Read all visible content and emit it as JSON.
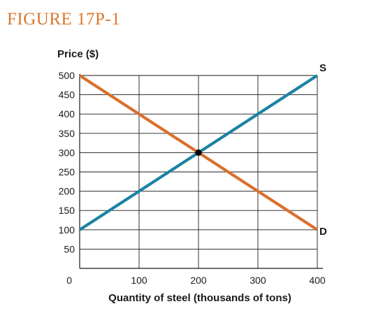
{
  "figure_label": "FIGURE 17P-1",
  "chart_data": {
    "type": "line",
    "title": "",
    "xlabel": "Quantity of steel (thousands of tons)",
    "ylabel": "Price ($)",
    "xlim": [
      0,
      400
    ],
    "ylim": [
      0,
      500
    ],
    "x_ticks": [
      100,
      200,
      300,
      400
    ],
    "y_ticks": [
      50,
      100,
      150,
      200,
      250,
      300,
      350,
      400,
      450,
      500
    ],
    "origin_label": "0",
    "grid": true,
    "series": [
      {
        "name": "S",
        "color": "#1b83a3",
        "points": [
          [
            0,
            100
          ],
          [
            400,
            500
          ]
        ]
      },
      {
        "name": "D",
        "color": "#d9702c",
        "points": [
          [
            0,
            500
          ],
          [
            400,
            100
          ]
        ]
      }
    ],
    "equilibrium": {
      "x": 200,
      "y": 300,
      "color": "#000000"
    }
  }
}
